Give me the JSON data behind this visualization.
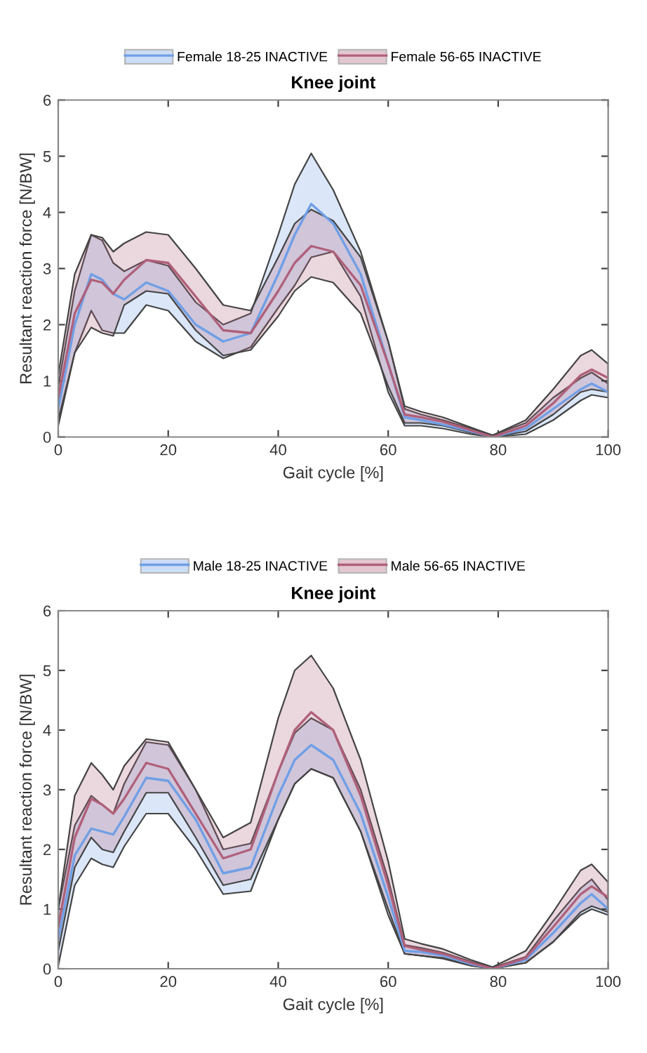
{
  "chart_data": [
    {
      "type": "line",
      "title": "Knee joint",
      "xlabel": "Gait cycle [%]",
      "ylabel": "Resultant reaction force [N/BW]",
      "xlim": [
        0,
        100
      ],
      "ylim": [
        0,
        6
      ],
      "xticks": [
        0,
        20,
        40,
        60,
        80,
        100
      ],
      "yticks": [
        0,
        1,
        2,
        3,
        4,
        5,
        6
      ],
      "legend": "top",
      "grid": false,
      "x": [
        0,
        3,
        6,
        8,
        10,
        12,
        16,
        20,
        25,
        30,
        35,
        40,
        43,
        46,
        50,
        55,
        60,
        63,
        66,
        70,
        75,
        79,
        85,
        90,
        95,
        97,
        100
      ],
      "series": [
        {
          "name": "Female 18-25 INACTIVE",
          "color": "#6f9fe6",
          "values": [
            0.5,
            2.0,
            2.9,
            2.8,
            2.55,
            2.45,
            2.75,
            2.6,
            2.0,
            1.7,
            1.85,
            2.9,
            3.6,
            4.15,
            3.8,
            2.9,
            1.3,
            0.35,
            0.3,
            0.22,
            0.1,
            0.0,
            0.15,
            0.5,
            0.85,
            0.95,
            0.8
          ],
          "lower": [
            0.2,
            1.5,
            2.25,
            1.9,
            1.85,
            1.85,
            2.35,
            2.25,
            1.7,
            1.4,
            1.6,
            2.3,
            2.7,
            3.2,
            3.3,
            2.5,
            0.8,
            0.2,
            0.2,
            0.15,
            0.05,
            0.0,
            0.05,
            0.3,
            0.65,
            0.75,
            0.7
          ],
          "upper": [
            0.9,
            2.6,
            3.6,
            3.5,
            3.1,
            2.95,
            3.15,
            3.05,
            2.4,
            2.0,
            2.2,
            3.6,
            4.5,
            5.05,
            4.4,
            3.3,
            1.7,
            0.5,
            0.4,
            0.3,
            0.15,
            0.03,
            0.25,
            0.7,
            1.05,
            1.15,
            0.95
          ]
        },
        {
          "name": "Female 56-65 INACTIVE",
          "color": "#b0607a",
          "values": [
            0.7,
            2.2,
            2.8,
            2.75,
            2.55,
            2.8,
            3.15,
            3.1,
            2.5,
            1.9,
            1.85,
            2.6,
            3.1,
            3.4,
            3.3,
            2.7,
            1.3,
            0.4,
            0.35,
            0.27,
            0.12,
            0.0,
            0.2,
            0.6,
            1.1,
            1.2,
            1.05
          ],
          "lower": [
            0.3,
            1.5,
            1.95,
            1.85,
            1.8,
            2.35,
            2.6,
            2.55,
            1.9,
            1.45,
            1.55,
            2.15,
            2.6,
            2.85,
            2.75,
            2.2,
            0.9,
            0.25,
            0.25,
            0.2,
            0.08,
            0.0,
            0.1,
            0.4,
            0.8,
            0.85,
            0.8
          ],
          "upper": [
            1.1,
            2.9,
            3.6,
            3.55,
            3.3,
            3.45,
            3.65,
            3.6,
            3.0,
            2.35,
            2.25,
            3.2,
            3.8,
            4.05,
            3.85,
            3.2,
            1.7,
            0.55,
            0.45,
            0.35,
            0.17,
            0.03,
            0.3,
            0.85,
            1.45,
            1.55,
            1.3
          ]
        }
      ]
    },
    {
      "type": "line",
      "title": "Knee joint",
      "xlabel": "Gait cycle [%]",
      "ylabel": "Resultant reaction force [N/BW]",
      "xlim": [
        0,
        100
      ],
      "ylim": [
        0,
        6
      ],
      "xticks": [
        0,
        20,
        40,
        60,
        80,
        100
      ],
      "yticks": [
        0,
        1,
        2,
        3,
        4,
        5,
        6
      ],
      "legend": "top",
      "grid": false,
      "x": [
        0,
        3,
        6,
        8,
        10,
        12,
        16,
        20,
        25,
        30,
        35,
        40,
        43,
        46,
        50,
        55,
        60,
        63,
        66,
        70,
        75,
        79,
        85,
        90,
        95,
        97,
        100
      ],
      "series": [
        {
          "name": "Male 18-25 INACTIVE",
          "color": "#6f9fe6",
          "values": [
            0.5,
            1.9,
            2.35,
            2.3,
            2.25,
            2.55,
            3.2,
            3.15,
            2.5,
            1.6,
            1.7,
            2.9,
            3.5,
            3.75,
            3.5,
            2.6,
            1.2,
            0.3,
            0.28,
            0.22,
            0.08,
            0.0,
            0.15,
            0.6,
            1.1,
            1.25,
            1.0
          ],
          "lower": [
            0.05,
            1.4,
            1.85,
            1.75,
            1.7,
            2.05,
            2.6,
            2.6,
            2.0,
            1.25,
            1.3,
            2.5,
            3.1,
            3.35,
            3.2,
            2.3,
            0.9,
            0.25,
            0.22,
            0.17,
            0.05,
            0.0,
            0.1,
            0.45,
            0.9,
            1.0,
            0.9
          ],
          "upper": [
            1.0,
            2.4,
            2.9,
            2.75,
            2.6,
            3.1,
            3.8,
            3.75,
            3.0,
            2.0,
            2.1,
            3.3,
            3.95,
            4.2,
            4.0,
            3.0,
            1.5,
            0.4,
            0.35,
            0.27,
            0.12,
            0.02,
            0.2,
            0.8,
            1.35,
            1.5,
            1.15
          ]
        },
        {
          "name": "Male 56-65 INACTIVE",
          "color": "#b0607a",
          "values": [
            0.7,
            2.2,
            2.85,
            2.75,
            2.6,
            2.85,
            3.45,
            3.35,
            2.6,
            1.85,
            2.0,
            3.3,
            4.0,
            4.3,
            4.0,
            2.9,
            1.4,
            0.38,
            0.32,
            0.25,
            0.1,
            0.0,
            0.18,
            0.7,
            1.25,
            1.38,
            1.2
          ],
          "lower": [
            0.3,
            1.7,
            2.2,
            2.0,
            1.95,
            2.3,
            2.95,
            2.95,
            2.2,
            1.4,
            1.5,
            2.5,
            3.1,
            3.35,
            3.2,
            2.3,
            1.0,
            0.25,
            0.22,
            0.18,
            0.06,
            0.0,
            0.1,
            0.45,
            0.95,
            1.05,
            0.95
          ],
          "upper": [
            1.0,
            2.9,
            3.45,
            3.25,
            3.0,
            3.4,
            3.85,
            3.8,
            3.0,
            2.2,
            2.45,
            4.2,
            5.0,
            5.25,
            4.7,
            3.5,
            1.8,
            0.5,
            0.42,
            0.33,
            0.15,
            0.03,
            0.3,
            0.95,
            1.65,
            1.75,
            1.45
          ]
        }
      ]
    }
  ]
}
